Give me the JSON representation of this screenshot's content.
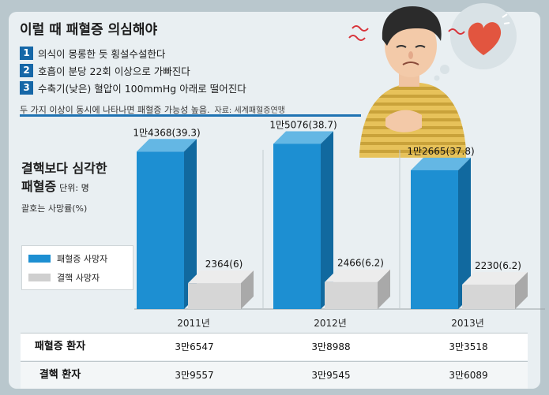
{
  "headline": "이럴 때 패혈증 의심해야",
  "conditions": [
    {
      "num": "1",
      "text": "의식이 몽롱한 듯 횡설수설한다"
    },
    {
      "num": "2",
      "text": "호흡이 분당 22회 이상으로 가빠진다"
    },
    {
      "num": "3",
      "text": "수축기(낮은) 혈압이 100mmHg 아래로 떨어진다"
    }
  ],
  "note": "두 가지 이상이 동시에 나타나면 패혈증 가능성 높음.",
  "source": "자료: 세계패혈증연맹",
  "chart_title_line1": "결핵보다 심각한",
  "chart_title_line2": "패혈증",
  "chart_unit": "단위: 명",
  "chart_subtitle": "괄호는 사망률(%)",
  "legend": {
    "sepsis": "패혈증 사망자",
    "tb": "결핵 사망자"
  },
  "colors": {
    "sepsis_front": "#1d8fd2",
    "sepsis_side": "#11699f",
    "sepsis_top": "#64b7e4",
    "tb_front": "#d6d6d6",
    "tb_side": "#a9a9a9",
    "tb_top": "#ececec",
    "accent": "#1667a7"
  },
  "chart_data": {
    "type": "bar",
    "categories": [
      "2011년",
      "2012년",
      "2013년"
    ],
    "series": [
      {
        "name": "패혈증 사망자",
        "values": [
          14368,
          15076,
          12665
        ],
        "labels": [
          "1만4368(39.3)",
          "1만5076(38.7)",
          "1만2665(37.8)"
        ]
      },
      {
        "name": "결핵 사망자",
        "values": [
          2364,
          2466,
          2230
        ],
        "labels": [
          "2364(6)",
          "2466(6.2)",
          "2230(6.2)"
        ]
      }
    ]
  },
  "table": {
    "rows": [
      {
        "label": "패혈증 환자",
        "values": [
          "3만6547",
          "3만8988",
          "3만3518"
        ]
      },
      {
        "label": "결핵 환자",
        "values": [
          "3만9557",
          "3만9545",
          "3만6089"
        ]
      }
    ]
  }
}
